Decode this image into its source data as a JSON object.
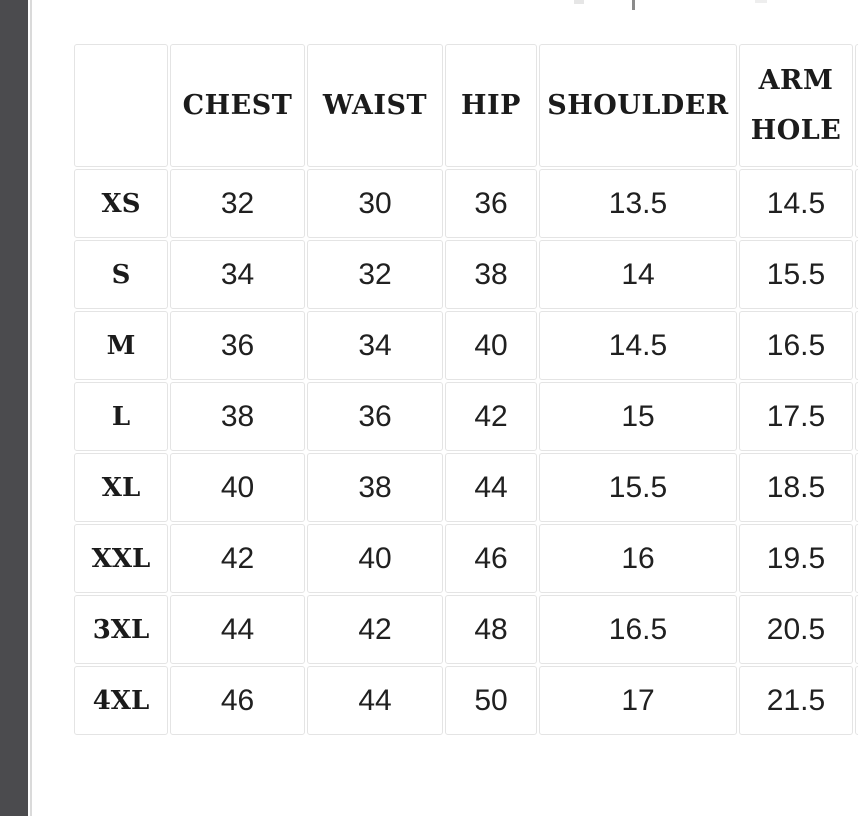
{
  "theme": {
    "background": "#ffffff",
    "left_strip_color": "#4b4b4e",
    "table_border_color": "#e4e4e4",
    "header_text_color": "#1b1b1b",
    "value_text_color": "#202020",
    "remnant_mark_color": "#8b8b8b"
  },
  "size_chart": {
    "columns": [
      {
        "key": "size",
        "label": ""
      },
      {
        "key": "chest",
        "label": "CHEST"
      },
      {
        "key": "waist",
        "label": "WAIST"
      },
      {
        "key": "hip",
        "label": "HIP"
      },
      {
        "key": "shoulder",
        "label": "SHOULDER"
      },
      {
        "key": "armhole",
        "label": "ARM HOLE"
      }
    ],
    "rows": [
      {
        "size": "XS",
        "chest": "32",
        "waist": "30",
        "hip": "36",
        "shoulder": "13.5",
        "armhole": "14.5"
      },
      {
        "size": "S",
        "chest": "34",
        "waist": "32",
        "hip": "38",
        "shoulder": "14",
        "armhole": "15.5"
      },
      {
        "size": "M",
        "chest": "36",
        "waist": "34",
        "hip": "40",
        "shoulder": "14.5",
        "armhole": "16.5"
      },
      {
        "size": "L",
        "chest": "38",
        "waist": "36",
        "hip": "42",
        "shoulder": "15",
        "armhole": "17.5"
      },
      {
        "size": "XL",
        "chest": "40",
        "waist": "38",
        "hip": "44",
        "shoulder": "15.5",
        "armhole": "18.5"
      },
      {
        "size": "XXL",
        "chest": "42",
        "waist": "40",
        "hip": "46",
        "shoulder": "16",
        "armhole": "19.5"
      },
      {
        "size": "3XL",
        "chest": "44",
        "waist": "42",
        "hip": "48",
        "shoulder": "16.5",
        "armhole": "20.5"
      },
      {
        "size": "4XL",
        "chest": "46",
        "waist": "44",
        "hip": "50",
        "shoulder": "17",
        "armhole": "21.5"
      }
    ]
  }
}
